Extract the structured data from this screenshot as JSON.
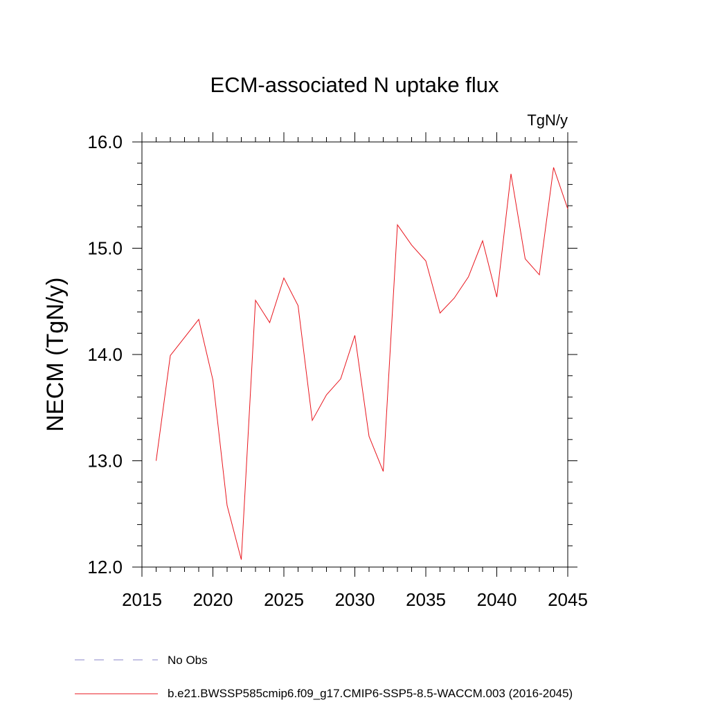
{
  "chart_data": {
    "type": "line",
    "title": "ECM-associated N uptake flux",
    "units": "TgN/y",
    "ylabel": "NECM  (TgN/y)",
    "xlabel": "",
    "xlim": [
      2015,
      2045
    ],
    "ylim": [
      12.0,
      16.0
    ],
    "xticks": [
      "2015",
      "2020",
      "2025",
      "2030",
      "2035",
      "2040",
      "2045"
    ],
    "yticks": [
      "12.0",
      "13.0",
      "14.0",
      "15.0",
      "16.0"
    ],
    "series": [
      {
        "name": "b.e21.BWSSP585cmip6.f09_g17.CMIP6-SSP5-8.5-WACCM.003 (2016-2045)",
        "color": "#e8141c",
        "x": [
          2016,
          2017,
          2018,
          2019,
          2020,
          2021,
          2022,
          2023,
          2024,
          2025,
          2026,
          2027,
          2028,
          2029,
          2030,
          2031,
          2032,
          2033,
          2034,
          2035,
          2036,
          2037,
          2038,
          2039,
          2040,
          2041,
          2042,
          2043,
          2044,
          2045
        ],
        "values": [
          13.0,
          13.99,
          14.16,
          14.33,
          13.76,
          12.58,
          12.07,
          14.51,
          14.3,
          14.72,
          14.46,
          13.38,
          13.62,
          13.77,
          14.18,
          13.23,
          12.9,
          15.22,
          15.03,
          14.88,
          14.39,
          14.53,
          14.73,
          15.07,
          14.54,
          15.7,
          14.9,
          14.75,
          15.76,
          15.37
        ]
      }
    ],
    "legend": [
      {
        "label": "No Obs",
        "style": "dashed",
        "color": "#8a84c8"
      },
      {
        "label": "b.e21.BWSSP585cmip6.f09_g17.CMIP6-SSP5-8.5-WACCM.003 (2016-2045)",
        "style": "solid",
        "color": "#e8141c"
      }
    ],
    "grid": false
  }
}
